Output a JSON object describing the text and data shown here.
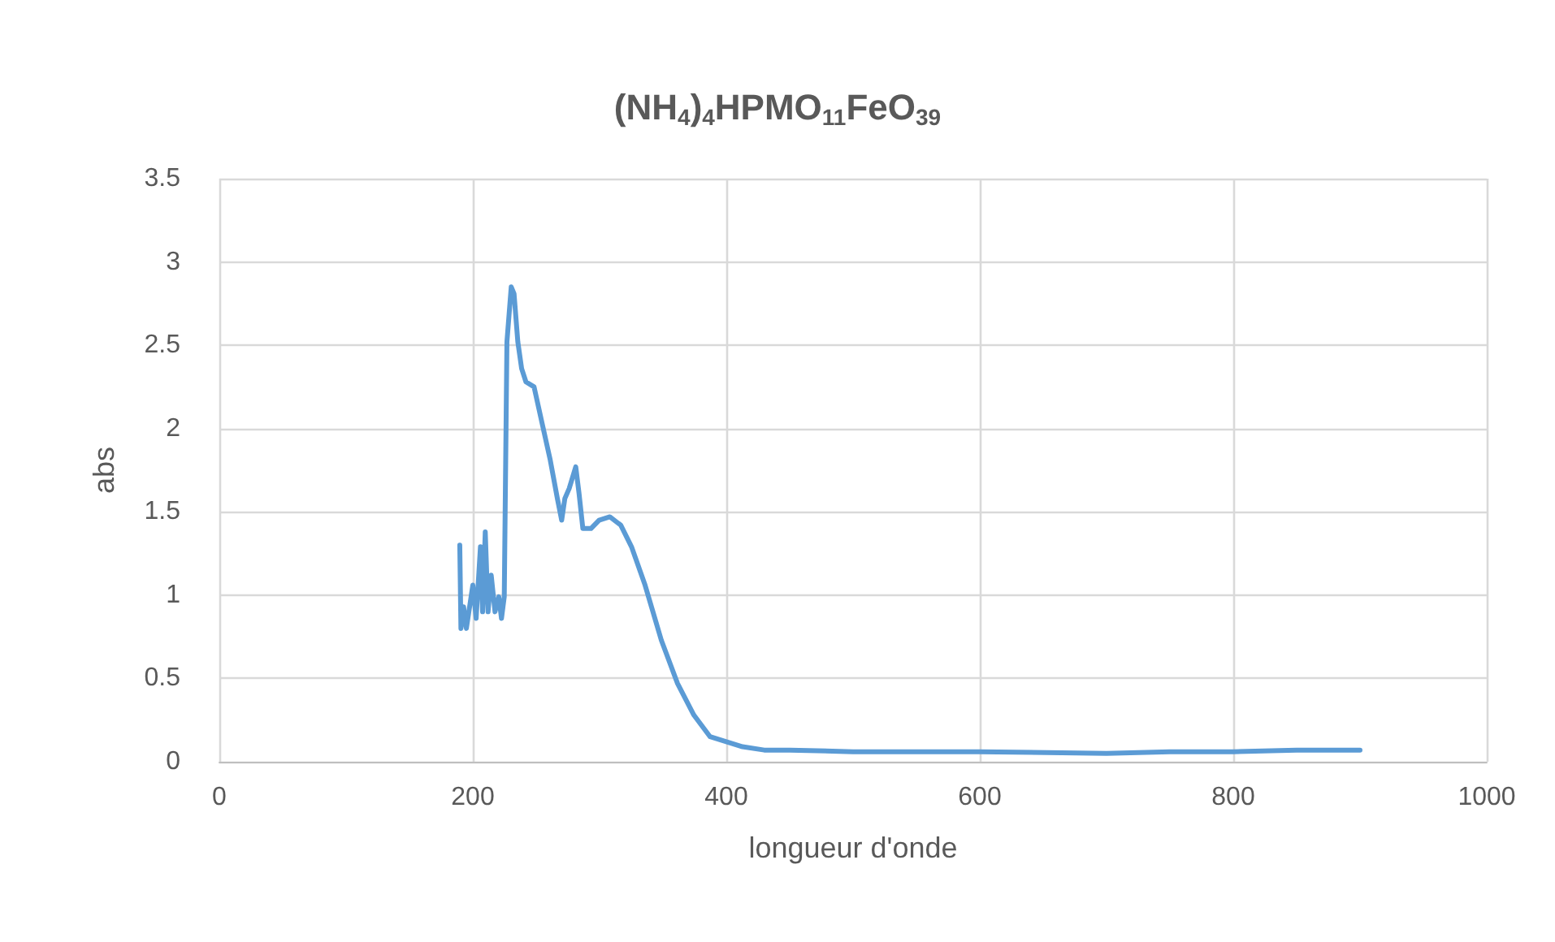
{
  "chart_data": {
    "type": "line",
    "title": "(NH$_{4}$)$_{4}$HPMO$_{11}$FeO$_{39}$",
    "xlabel": "longueur d'onde",
    "ylabel": "abs",
    "xlim": [
      0,
      1000
    ],
    "xticks": [
      0,
      200,
      400,
      600,
      800,
      1000
    ],
    "ylim": [
      0,
      3.5
    ],
    "yticks": [
      0,
      0.5,
      1,
      1.5,
      2,
      2.5,
      3,
      3.5
    ],
    "grid": true,
    "marker": "none",
    "line_style": "solid",
    "series": [
      {
        "color": "#5b9bd5",
        "x": [
          189.7,
          190.6,
          192.7,
          194.9,
          200,
          202.6,
          206,
          207.7,
          209.8,
          212,
          214.5,
          217.5,
          220.5,
          222.6,
          224.8,
          226.9,
          230.3,
          232.5,
          235.5,
          238.5,
          241.9,
          248.3,
          254.7,
          261.1,
          266.7,
          270.1,
          272.6,
          276,
          281.2,
          283.8,
          286.8,
          293.2,
          299.6,
          308.1,
          316.7,
          325.2,
          335.9,
          348.7,
          361.5,
          374.4,
          387.2,
          400,
          412.8,
          429.9,
          450,
          500,
          600,
          700,
          750,
          800,
          850,
          900
        ],
        "values": [
          1.3,
          0.8,
          0.93,
          0.8,
          1.06,
          0.86,
          1.29,
          0.9,
          1.38,
          0.9,
          1.12,
          0.9,
          0.99,
          0.86,
          0.99,
          2.52,
          2.85,
          2.81,
          2.52,
          2.36,
          2.28,
          2.25,
          2.03,
          1.81,
          1.58,
          1.45,
          1.58,
          1.64,
          1.77,
          1.61,
          1.4,
          1.4,
          1.45,
          1.47,
          1.42,
          1.29,
          1.06,
          0.73,
          0.47,
          0.28,
          0.15,
          0.12,
          0.09,
          0.07,
          0.07,
          0.06,
          0.06,
          0.05,
          0.06,
          0.06,
          0.07,
          0.07
        ]
      }
    ]
  }
}
